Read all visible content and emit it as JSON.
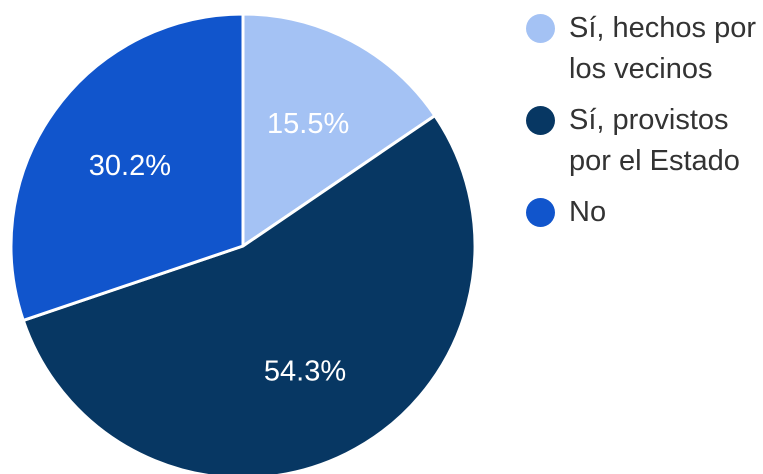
{
  "chart_data": {
    "type": "pie",
    "title": "",
    "legend_position": "right",
    "slices": [
      {
        "label": "Sí, hechos por los vecinos",
        "value": 15.5,
        "display": "15.5%",
        "color": "#a4c2f4"
      },
      {
        "label": "Sí, provistos por el Estado",
        "value": 54.3,
        "display": "54.3%",
        "color": "#073763"
      },
      {
        "label": "No",
        "value": 30.2,
        "display": "30.2%",
        "color": "#1155cc"
      }
    ]
  }
}
